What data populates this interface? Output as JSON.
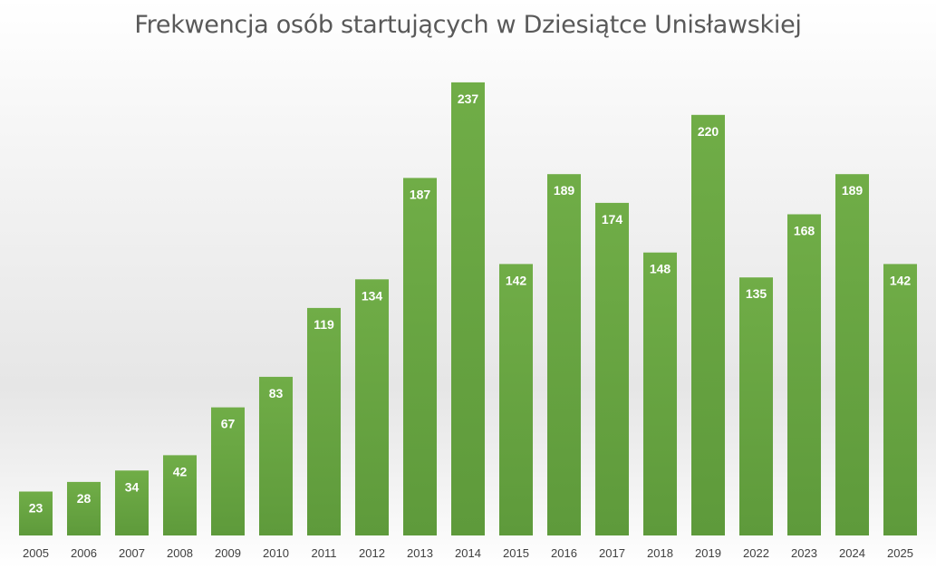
{
  "chart_data": {
    "type": "bar",
    "title": "Frekwencja osób startujących w Dziesiątce Unisławskiej",
    "xlabel": "",
    "ylabel": "",
    "categories": [
      "2005",
      "2006",
      "2007",
      "2008",
      "2009",
      "2010",
      "2011",
      "2012",
      "2013",
      "2014",
      "2015",
      "2016",
      "2017",
      "2018",
      "2019",
      "2022",
      "2023",
      "2024",
      "2025"
    ],
    "values": [
      23,
      28,
      34,
      42,
      67,
      83,
      119,
      134,
      187,
      237,
      142,
      189,
      174,
      148,
      220,
      135,
      168,
      189,
      142
    ],
    "ylim": [
      0,
      250
    ],
    "grid": false,
    "legend": "none",
    "data_labels": "inside-top",
    "colors": {
      "bar_top": "#70ad47",
      "bar_bottom": "#5e9a3b",
      "label": "#ffffff"
    }
  }
}
